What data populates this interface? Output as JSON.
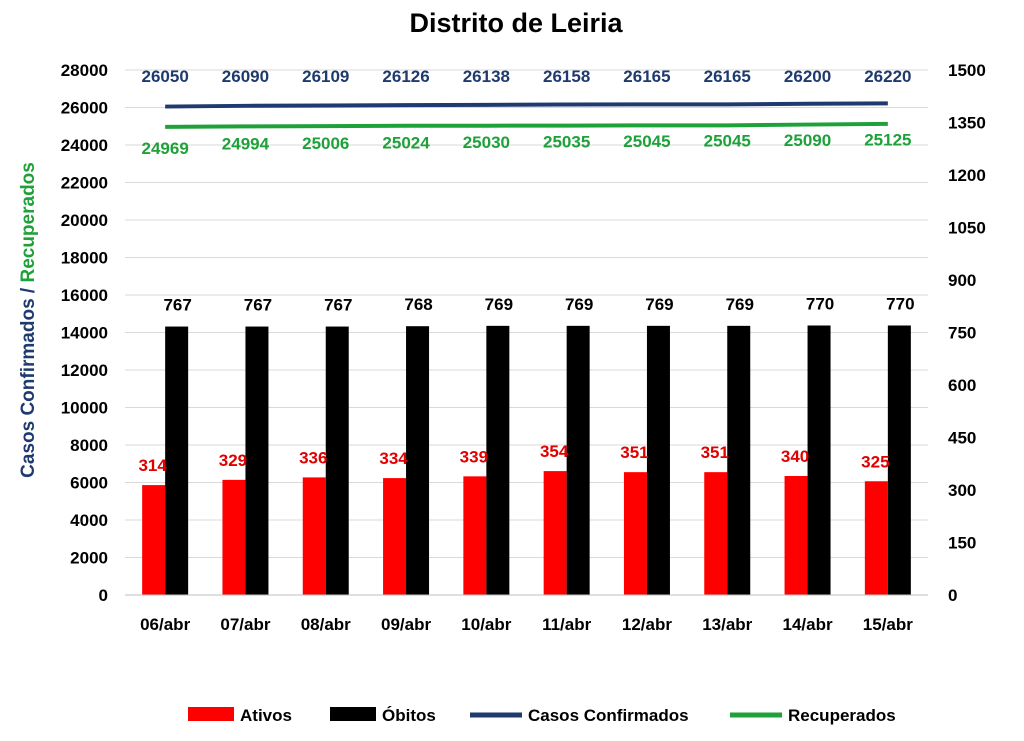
{
  "chart_data": {
    "type": "bar",
    "title": "Distrito de Leiria",
    "categories": [
      "06/abr",
      "07/abr",
      "08/abr",
      "09/abr",
      "10/abr",
      "11/abr",
      "12/abr",
      "13/abr",
      "14/abr",
      "15/abr"
    ],
    "series": [
      {
        "name": "Ativos",
        "type": "bar",
        "axis": "right",
        "color": "#ff0000",
        "values": [
          314,
          329,
          336,
          334,
          339,
          354,
          351,
          351,
          340,
          325
        ]
      },
      {
        "name": "Óbitos",
        "type": "bar",
        "axis": "right",
        "color": "#000000",
        "values": [
          767,
          767,
          767,
          768,
          769,
          769,
          769,
          769,
          770,
          770
        ]
      },
      {
        "name": "Casos Confirmados",
        "type": "line",
        "axis": "left",
        "color": "#1f3a6e",
        "values": [
          26050,
          26090,
          26109,
          26126,
          26138,
          26158,
          26165,
          26165,
          26200,
          26220
        ]
      },
      {
        "name": "Recuperados",
        "type": "line",
        "axis": "left",
        "color": "#1fa13a",
        "values": [
          24969,
          24994,
          25006,
          25024,
          25030,
          25035,
          25045,
          25045,
          25090,
          25125
        ]
      }
    ],
    "ylabel_part1": "Casos Confirmados",
    "ylabel_sep": " / ",
    "ylabel_part2": "Recuperados",
    "ylim_left": [
      0,
      28000
    ],
    "yticks_left": [
      0,
      2000,
      4000,
      6000,
      8000,
      10000,
      12000,
      14000,
      16000,
      18000,
      20000,
      22000,
      24000,
      26000,
      28000
    ],
    "ylim_right": [
      0,
      1500
    ],
    "yticks_right": [
      0,
      150,
      300,
      450,
      600,
      750,
      900,
      1050,
      1200,
      1350,
      1500
    ],
    "grid": true,
    "legend_position": "bottom"
  }
}
